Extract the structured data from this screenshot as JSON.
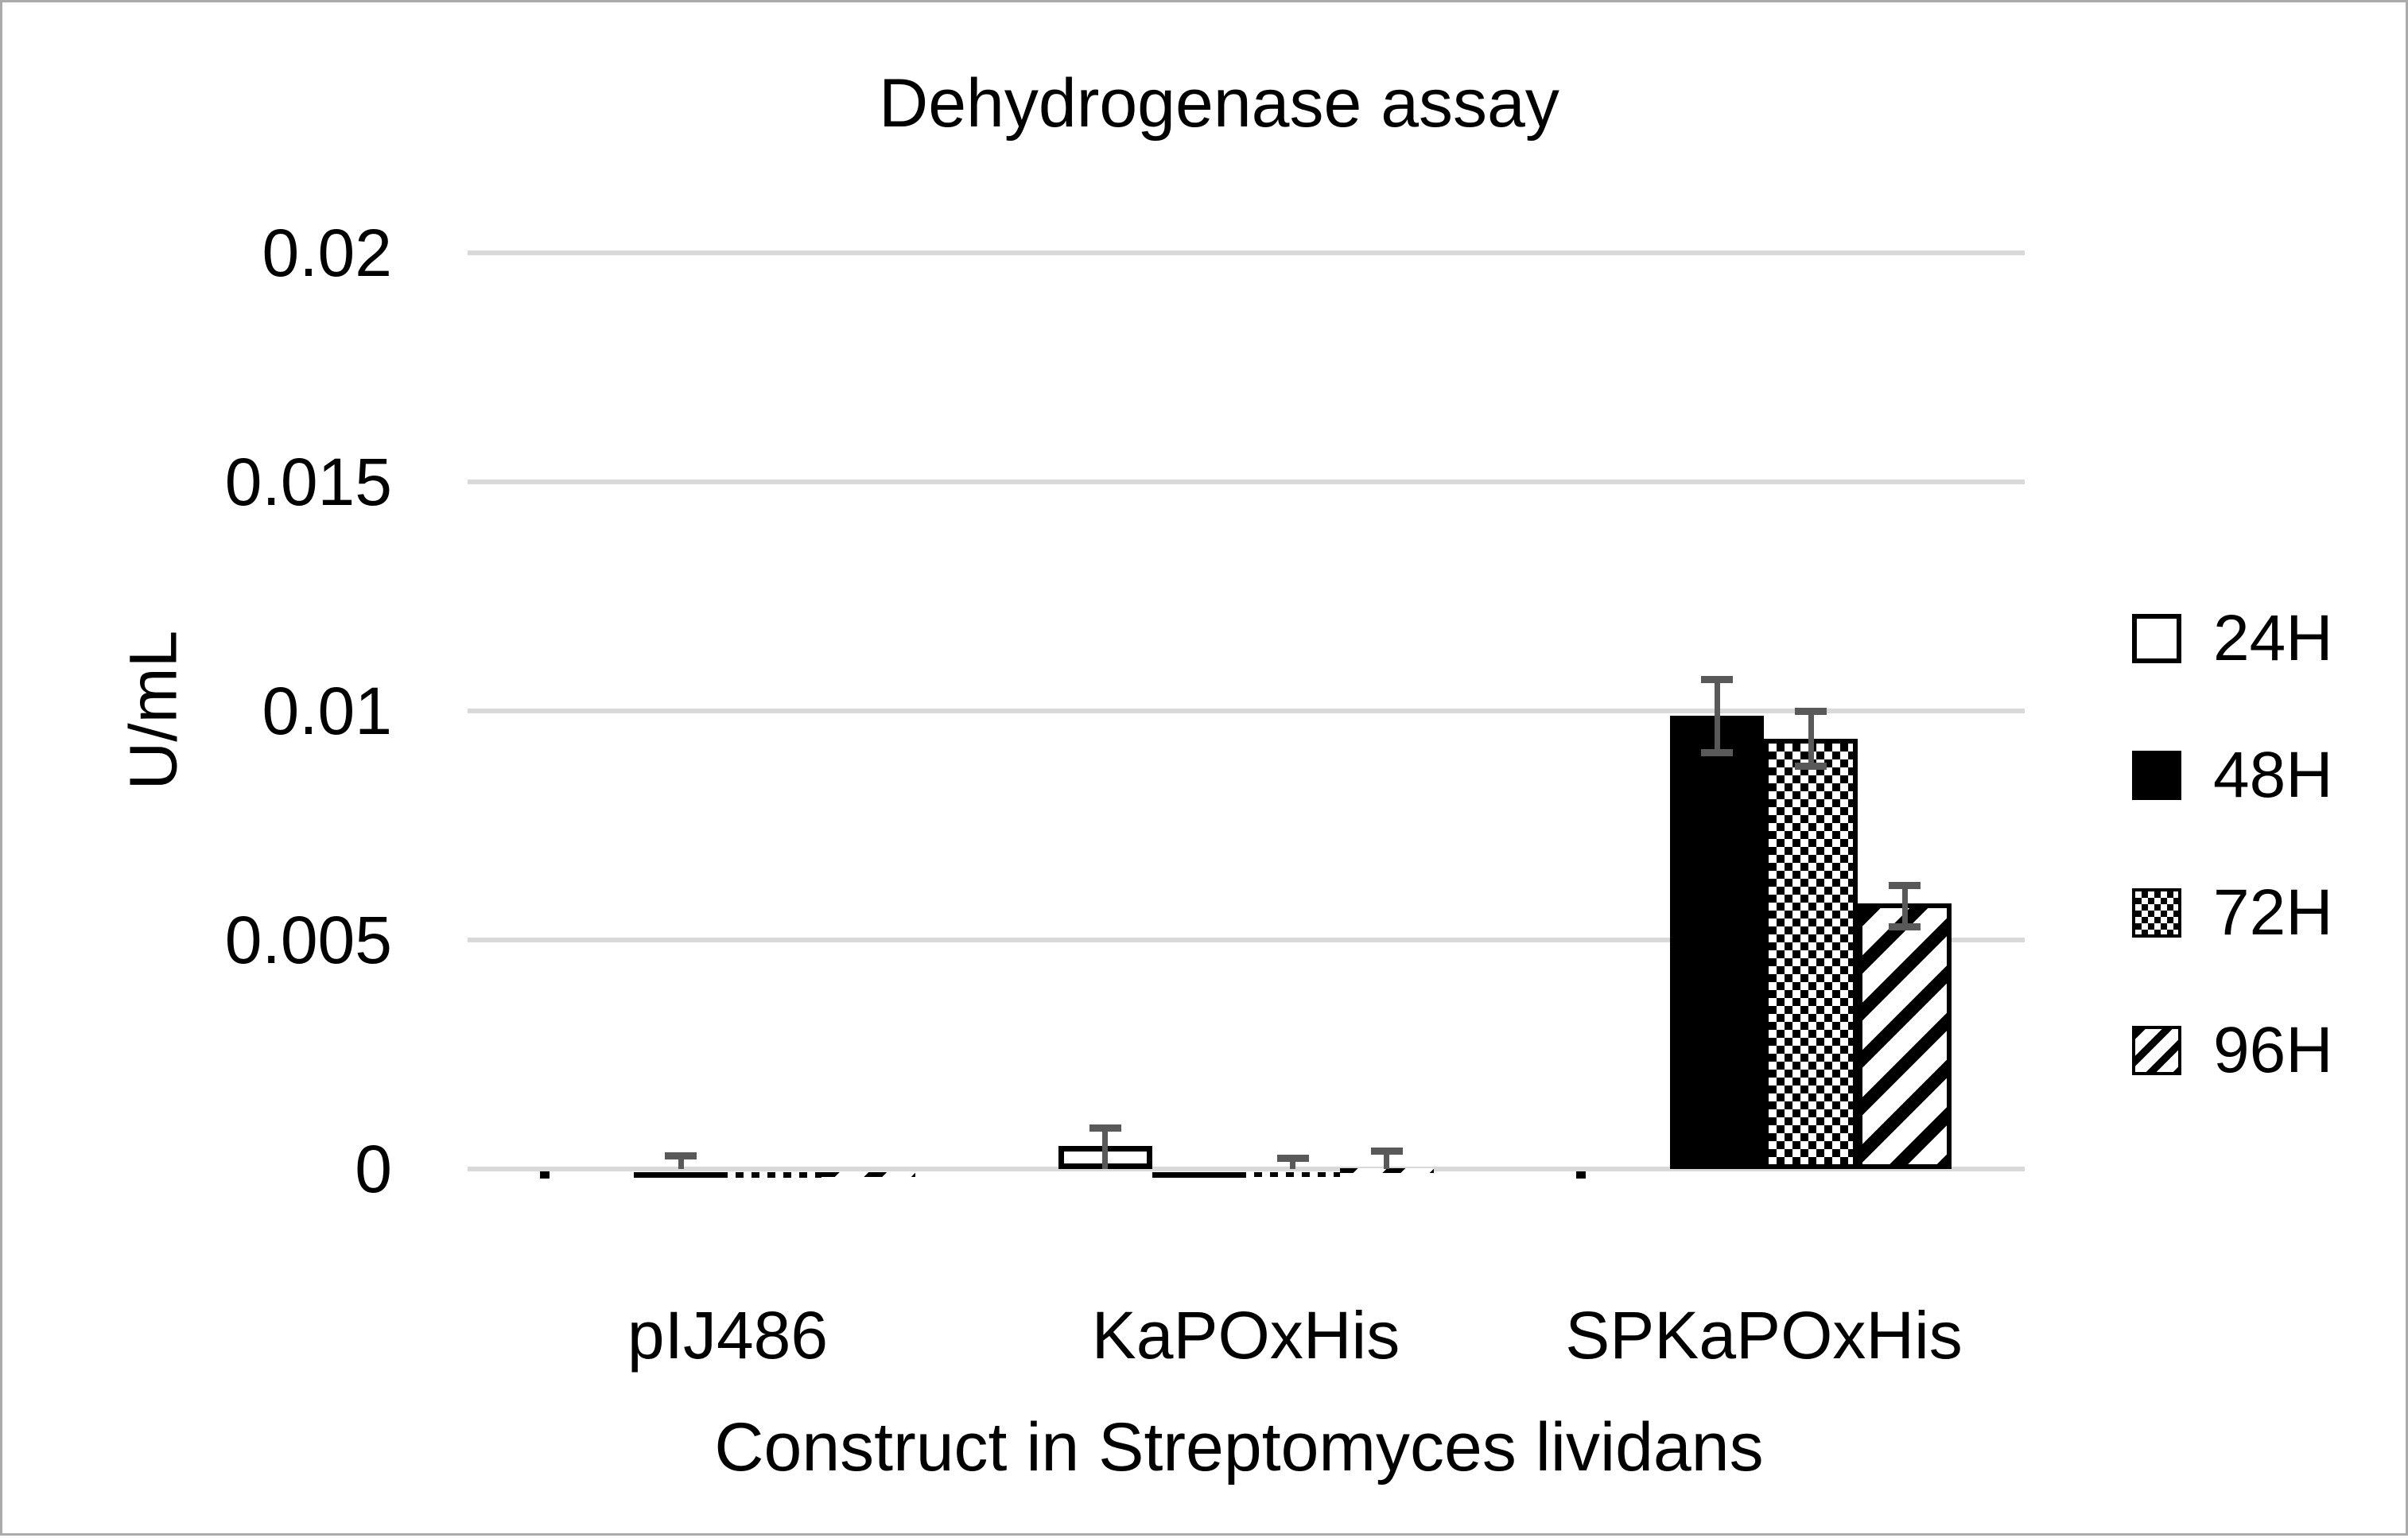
{
  "page": {
    "background": "#ffffff",
    "border_color": "#ababab"
  },
  "chart_data": {
    "type": "bar",
    "title": "Dehydrogenase assay",
    "xlabel": "Construct in Streptomyces lividans",
    "ylabel": "U/mL",
    "ylim": [
      0,
      0.02
    ],
    "grid": true,
    "legend_position": "right",
    "gridline_color": "#d9d9d9",
    "error_bar_color": "#595959",
    "axis_text_color": "#000000",
    "yticks": [
      {
        "value": 0,
        "label": "0"
      },
      {
        "value": 0.005,
        "label": "0.005"
      },
      {
        "value": 0.01,
        "label": "0.01"
      },
      {
        "value": 0.015,
        "label": "0.015"
      },
      {
        "value": 0.02,
        "label": "0.02"
      }
    ],
    "categories": [
      "pIJ486",
      "KaPOxHis",
      "SPKaPOxHis"
    ],
    "series": [
      {
        "name": "24H",
        "pattern": "open",
        "values": [
          -5e-05,
          0.0005,
          -5e-05
        ],
        "err_top": [
          null,
          0.0009,
          null
        ],
        "err_bot": [
          null,
          null,
          null
        ]
      },
      {
        "name": "48H",
        "pattern": "solid",
        "values": [
          -0.00012,
          -0.00012,
          0.0099
        ],
        "err_top": [
          0.0003,
          null,
          0.0107
        ],
        "err_bot": [
          null,
          null,
          0.0091
        ]
      },
      {
        "name": "72H",
        "pattern": "checker",
        "values": [
          -0.00012,
          -0.0001,
          0.0094
        ],
        "err_top": [
          null,
          0.00025,
          0.01
        ],
        "err_bot": [
          null,
          null,
          0.0088
        ]
      },
      {
        "name": "96H",
        "pattern": "diagonal",
        "values": [
          -0.0001,
          2e-05,
          0.0058
        ],
        "err_top": [
          null,
          0.0004,
          0.0062
        ],
        "err_bot": [
          null,
          null,
          0.0053
        ]
      }
    ]
  }
}
